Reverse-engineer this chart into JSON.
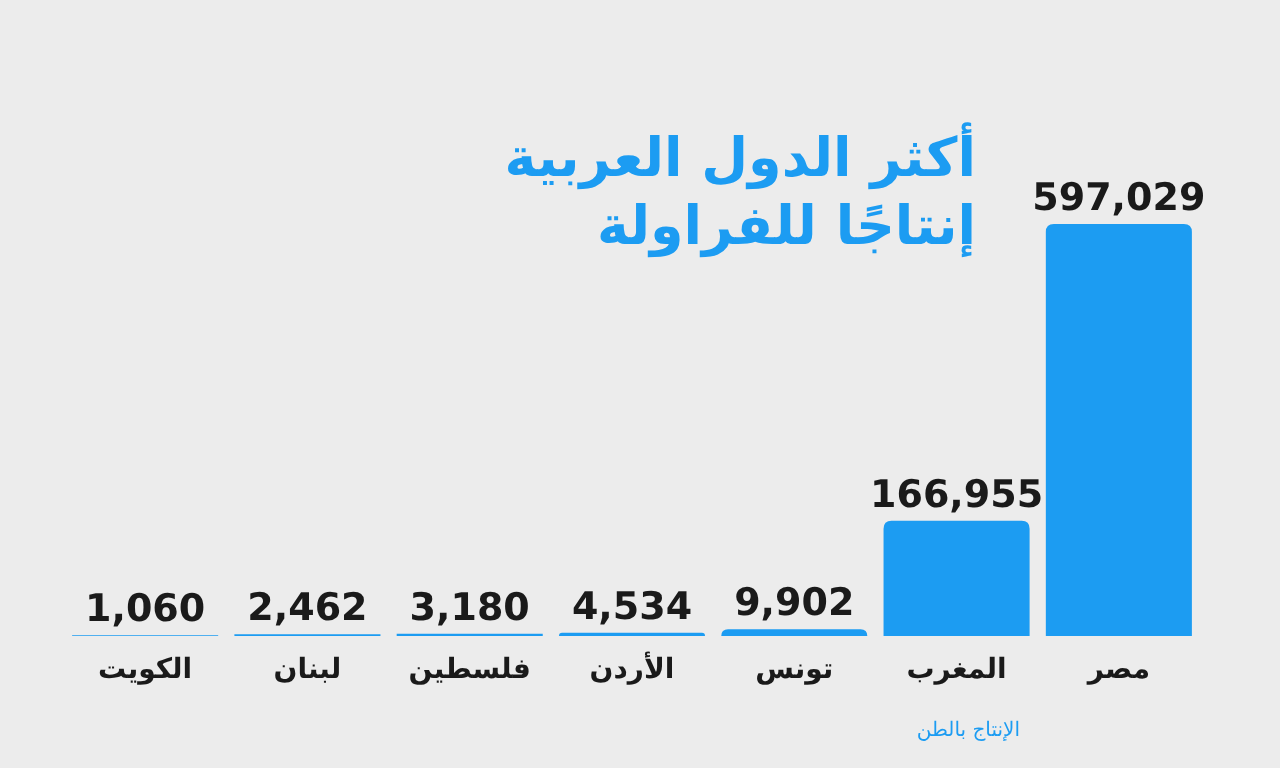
{
  "chart_data": {
    "type": "bar",
    "title": "أكثر الدول العربية\nإنتاجًا للفراولة",
    "categories": [
      "الكويت",
      "لبنان",
      "فلسطين",
      "الأردن",
      "تونس",
      "المغرب",
      "مصر"
    ],
    "values": [
      1060,
      2462,
      3180,
      4534,
      9902,
      166955,
      597029
    ],
    "color": "#1c9cf2",
    "value_labels": [
      "1,060",
      "2,462",
      "3,180",
      "4,534",
      "9,902",
      "166,955",
      "597,029"
    ],
    "annotations": [
      "الإنتاج بالطن"
    ]
  }
}
